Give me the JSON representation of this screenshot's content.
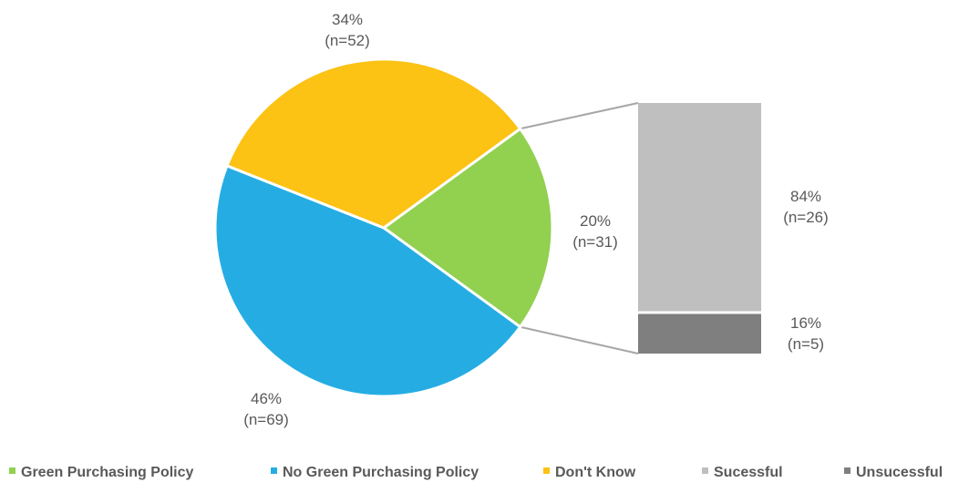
{
  "chart_data": {
    "type": "pie",
    "subtype": "bar-of-pie",
    "title": "",
    "pie": {
      "slices": [
        {
          "name": "Green Purchasing Policy",
          "percent": 20,
          "n": 31,
          "label_line1": "20%",
          "label_line2": "(n=31)",
          "color": "#92D050"
        },
        {
          "name": "No Green Purchasing Policy",
          "percent": 46,
          "n": 69,
          "label_line1": "46%",
          "label_line2": "(n=69)",
          "color": "#25ADE3"
        },
        {
          "name": "Don't Know",
          "percent": 34,
          "n": 52,
          "label_line1": "34%",
          "label_line2": "(n=52)",
          "color": "#FCC214"
        }
      ],
      "exploded_slice": "Green Purchasing Policy"
    },
    "bar": {
      "segments": [
        {
          "name": "Sucessful",
          "percent": 84,
          "n": 26,
          "label_line1": "84%",
          "label_line2": "(n=26)",
          "color": "#BFBFBF"
        },
        {
          "name": "Unsucessful",
          "percent": 16,
          "n": 5,
          "label_line1": "16%",
          "label_line2": "(n=5)",
          "color": "#7F7F7F"
        }
      ]
    },
    "legend": {
      "position": "bottom",
      "entries": [
        {
          "label": "Green Purchasing Policy",
          "color": "#92D050"
        },
        {
          "label": "No Green Purchasing Policy",
          "color": "#25ADE3"
        },
        {
          "label": "Don't Know",
          "color": "#FCC214"
        },
        {
          "label": "Sucessful",
          "color": "#BFBFBF"
        },
        {
          "label": "Unsucessful",
          "color": "#7F7F7F"
        }
      ]
    },
    "connector_color": "#A6A6A6",
    "label_color": "#595959"
  }
}
